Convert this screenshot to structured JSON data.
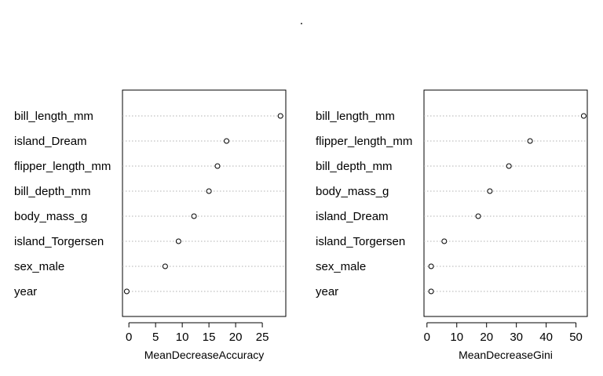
{
  "title": ".",
  "chart_data": [
    {
      "type": "scatter",
      "title": "",
      "xlabel": "MeanDecreaseAccuracy",
      "ylabel": "",
      "xlim": [
        -1.2,
        29.4
      ],
      "xticks": [
        0,
        5,
        10,
        15,
        20,
        25
      ],
      "categories": [
        "bill_length_mm",
        "island_Dream",
        "flipper_length_mm",
        "bill_depth_mm",
        "body_mass_g",
        "island_Torgersen",
        "sex_male",
        "year"
      ],
      "values": [
        28.4,
        18.3,
        16.6,
        15.0,
        12.2,
        9.3,
        6.8,
        -0.4
      ],
      "grid": "dotted horizontal lines per variable"
    },
    {
      "type": "scatter",
      "title": "",
      "xlabel": "MeanDecreaseGini",
      "ylabel": "",
      "xlim": [
        -1.0,
        53.8
      ],
      "xticks": [
        0,
        10,
        20,
        30,
        40,
        50
      ],
      "categories": [
        "bill_length_mm",
        "flipper_length_mm",
        "bill_depth_mm",
        "body_mass_g",
        "island_Dream",
        "island_Torgersen",
        "sex_male",
        "year"
      ],
      "values": [
        52.6,
        34.6,
        27.5,
        21.1,
        17.2,
        5.8,
        1.4,
        1.4
      ],
      "grid": "dotted horizontal lines per variable"
    }
  ]
}
